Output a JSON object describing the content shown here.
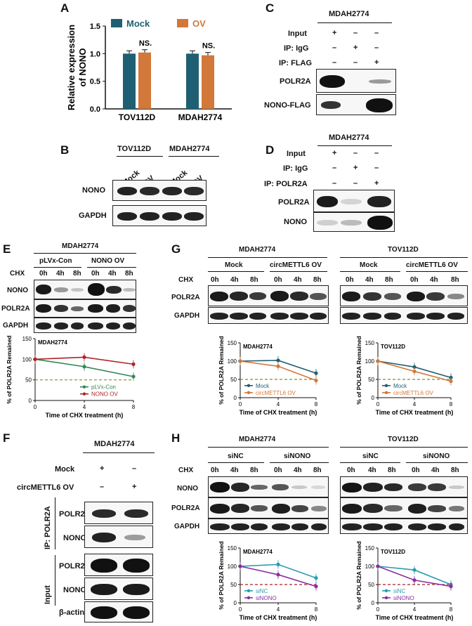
{
  "panels": {
    "A": "A",
    "B": "B",
    "C": "C",
    "D": "D",
    "E": "E",
    "F": "F",
    "G": "G",
    "H": "H"
  },
  "common": {
    "mdah": "MDAH2774",
    "tov": "TOV112D",
    "mock": "Mock",
    "ov": "OV",
    "cell_gapdh": "GAPDH",
    "cell_nono": "NONO",
    "cell_polr2a": "POLR2A",
    "chx": "CHX",
    "h0": "0h",
    "h4": "4h",
    "h8": "8h",
    "plus": "+",
    "minus": "–",
    "input": "Input",
    "ip_igg": "IP: IgG",
    "ip_flag": "IP: FLAG",
    "ip_polr2a": "IP: POLR2A",
    "nono_flag": "NONO-FLAG",
    "pLVx": "pLVx-Con",
    "nono_ov": "NONO OV",
    "circ_ov": "circMETTL6 OV",
    "sinc": "siNC",
    "sinono": "siNONO",
    "bactin": "β-actin",
    "ip_polr2a_v": "IP: POLR2A",
    "input_v": "Input",
    "ylab": "% of POLR2A Remained",
    "xlab": "Time of CHX treatment (h)",
    "ns": "NS."
  },
  "colors": {
    "teal": "#1f5f73",
    "orange": "#d2783a",
    "green": "#2f8a52",
    "red": "#b0232a",
    "blue": "#2a9bb3",
    "purple": "#8a2f9e",
    "dash_green": "#8a8a2a",
    "dash_red": "#a0202a"
  },
  "chart_data": [
    {
      "type": "bar",
      "panel": "A",
      "categories": [
        "TOV112D",
        "MDAH2774"
      ],
      "series": [
        {
          "name": "Mock",
          "values": [
            1.0,
            1.0
          ]
        },
        {
          "name": "OV",
          "values": [
            1.02,
            0.97
          ]
        }
      ],
      "ylabel": "Relative expression of NONO",
      "ylim": [
        0,
        1.5
      ],
      "yticks": [
        "0.0",
        "0.5",
        "1.0",
        "1.5"
      ],
      "annotations": [
        "NS.",
        "NS."
      ],
      "legend": "top"
    },
    {
      "type": "line",
      "panel": "E",
      "title": "MDAH2774",
      "x": [
        0,
        4,
        8
      ],
      "series": [
        {
          "name": "pLVx-Con",
          "values": [
            100,
            82,
            58
          ]
        },
        {
          "name": "NONO OV",
          "values": [
            100,
            105,
            88
          ]
        }
      ],
      "ylim": [
        0,
        150
      ],
      "yticks": [
        "0",
        "50",
        "100",
        "150"
      ],
      "xticks": [
        "0",
        "4",
        "8"
      ],
      "reference": 50
    },
    {
      "type": "line",
      "panel": "G1",
      "title": "MDAH2774",
      "x": [
        0,
        4,
        8
      ],
      "series": [
        {
          "name": "Mock",
          "values": [
            100,
            102,
            67
          ]
        },
        {
          "name": "circMETTL6 OV",
          "values": [
            100,
            86,
            47
          ]
        }
      ],
      "ylim": [
        0,
        150
      ],
      "yticks": [
        "0",
        "50",
        "100",
        "150"
      ],
      "xticks": [
        "0",
        "4",
        "8"
      ],
      "reference": 50
    },
    {
      "type": "line",
      "panel": "G2",
      "title": "TOV112D",
      "x": [
        0,
        4,
        8
      ],
      "series": [
        {
          "name": "Mock",
          "values": [
            100,
            84,
            55
          ]
        },
        {
          "name": "circMETTL6 OV",
          "values": [
            100,
            72,
            45
          ]
        }
      ],
      "ylim": [
        0,
        150
      ],
      "yticks": [
        "0",
        "50",
        "100",
        "150"
      ],
      "xticks": [
        "0",
        "4",
        "8"
      ],
      "reference": 50
    },
    {
      "type": "line",
      "panel": "H1",
      "title": "MDAH2774",
      "x": [
        0,
        4,
        8
      ],
      "series": [
        {
          "name": "siNC",
          "values": [
            100,
            105,
            68
          ]
        },
        {
          "name": "siNONO",
          "values": [
            100,
            77,
            45
          ]
        }
      ],
      "ylim": [
        0,
        150
      ],
      "yticks": [
        "0",
        "50",
        "100",
        "150"
      ],
      "xticks": [
        "0",
        "4",
        "8"
      ],
      "reference": 50
    },
    {
      "type": "line",
      "panel": "H2",
      "title": "TOV112D",
      "x": [
        0,
        4,
        8
      ],
      "series": [
        {
          "name": "siNC",
          "values": [
            100,
            90,
            50
          ]
        },
        {
          "name": "siNONO",
          "values": [
            100,
            62,
            45
          ]
        }
      ],
      "ylim": [
        0,
        150
      ],
      "yticks": [
        "0",
        "50",
        "100",
        "150"
      ],
      "xticks": [
        "0",
        "4",
        "8"
      ],
      "reference": 50
    }
  ]
}
